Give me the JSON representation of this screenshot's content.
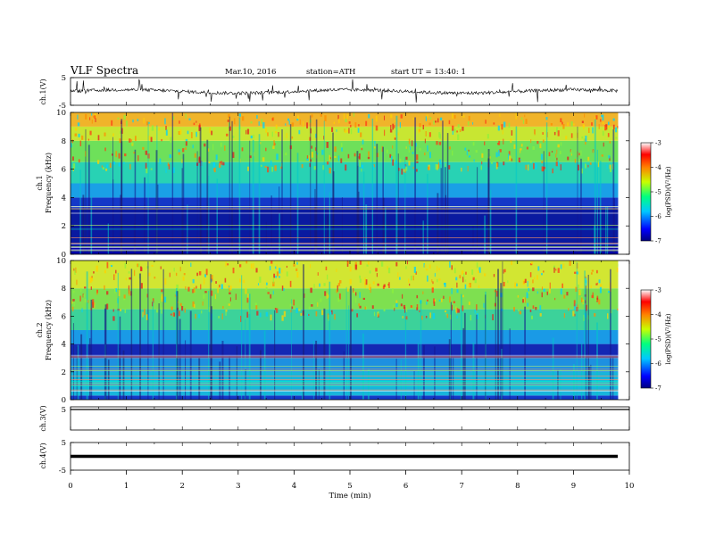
{
  "header": {
    "title": "VLF  Spectra",
    "date": "Mar.10, 2016",
    "station": "station=ATH",
    "start": "start  UT =   13:40: 1"
  },
  "chart_data": [
    {
      "type": "line",
      "name": "ch1-waveform",
      "ylabel": "ch.1(V)",
      "ylim": [
        -5,
        5
      ],
      "yticks": [
        "5",
        "-5"
      ],
      "baseline": 0,
      "duration_min": 9.8
    },
    {
      "type": "heatmap",
      "name": "ch1-spectrogram",
      "ylabel": "Frequency (kHz)",
      "channel_label": "ch.1",
      "ylim": [
        0,
        10
      ],
      "yticks": [
        "0",
        "2",
        "4",
        "6",
        "8",
        "10"
      ],
      "colorbar": {
        "label": "log(PSD)(V²/Hz)",
        "ticks": [
          "-3",
          "-4",
          "-5",
          "-6",
          "-7"
        ],
        "range": [
          -7,
          -3
        ]
      },
      "bands": [
        {
          "from": 0,
          "to": 0.5,
          "color": "#0000aa"
        },
        {
          "from": 0.5,
          "to": 3.2,
          "color": "#0a1aa0"
        },
        {
          "from": 3.2,
          "to": 4.0,
          "color": "#1438c8"
        },
        {
          "from": 4.0,
          "to": 5.0,
          "color": "#1aa0e6"
        },
        {
          "from": 5.0,
          "to": 6.5,
          "color": "#28d2b4"
        },
        {
          "from": 6.5,
          "to": 8.0,
          "color": "#6ee05a"
        },
        {
          "from": 8.0,
          "to": 9.0,
          "color": "#c8e632"
        },
        {
          "from": 9.0,
          "to": 10.0,
          "color": "#f0b42a"
        }
      ]
    },
    {
      "type": "heatmap",
      "name": "ch2-spectrogram",
      "ylabel": "Frequency (kHz)",
      "channel_label": "ch.2",
      "ylim": [
        0,
        10
      ],
      "yticks": [
        "0",
        "2",
        "4",
        "6",
        "8",
        "10"
      ],
      "colorbar": {
        "label": "log(PSD)(V²/Hz)",
        "ticks": [
          "-3",
          "-4",
          "-5",
          "-6",
          "-7"
        ],
        "range": [
          -7,
          -3
        ]
      },
      "bands": [
        {
          "from": 0,
          "to": 0.3,
          "color": "#1438c8"
        },
        {
          "from": 0.3,
          "to": 2.0,
          "color": "#18b4dc"
        },
        {
          "from": 2.0,
          "to": 3.0,
          "color": "#1e90e0"
        },
        {
          "from": 3.0,
          "to": 4.0,
          "color": "#1428b4"
        },
        {
          "from": 4.0,
          "to": 5.0,
          "color": "#1a9ae6"
        },
        {
          "from": 5.0,
          "to": 6.5,
          "color": "#3cd29a"
        },
        {
          "from": 6.5,
          "to": 8.0,
          "color": "#7ee050"
        },
        {
          "from": 8.0,
          "to": 10.0,
          "color": "#d2e632"
        }
      ]
    },
    {
      "type": "line",
      "name": "ch3-waveform",
      "ylabel": "ch.3(V)",
      "ylim": [
        -5,
        5
      ],
      "yticks": [
        "5"
      ],
      "baseline": 5
    },
    {
      "type": "line",
      "name": "ch4-waveform",
      "ylabel": "ch.4(V)",
      "ylim": [
        -5,
        5
      ],
      "yticks": [
        "5",
        "-5"
      ],
      "baseline": 0
    }
  ],
  "xaxis": {
    "label": "Time  (min)",
    "range": [
      0,
      10
    ],
    "ticks": [
      "0",
      "1",
      "2",
      "3",
      "4",
      "5",
      "6",
      "7",
      "8",
      "9",
      "10"
    ]
  },
  "colors": {
    "frame": "#000000",
    "trace": "#000000"
  }
}
